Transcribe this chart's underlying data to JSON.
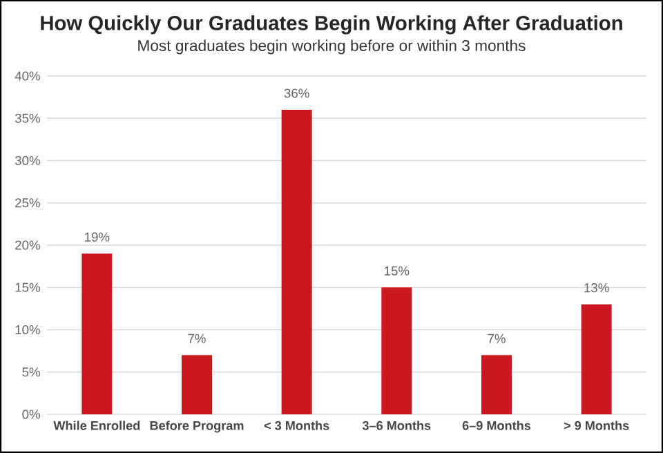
{
  "chart_data": {
    "type": "bar",
    "title": "How Quickly Our Graduates Begin Working After Graduation",
    "subtitle": "Most graduates begin working before or within 3 months",
    "categories": [
      "While Enrolled",
      "Before Program",
      "< 3 Months",
      "3–6 Months",
      "6–9 Months",
      "> 9 Months"
    ],
    "values": [
      19,
      7,
      36,
      15,
      7,
      13
    ],
    "value_labels": [
      "19%",
      "7%",
      "36%",
      "15%",
      "7%",
      "13%"
    ],
    "color": "#cc1820",
    "ylim": [
      0,
      40
    ],
    "yticks": [
      {
        "value": 0,
        "label": "0%"
      },
      {
        "value": 5,
        "label": "5%"
      },
      {
        "value": 10,
        "label": "10%"
      },
      {
        "value": 15,
        "label": "15%"
      },
      {
        "value": 20,
        "label": "20%"
      },
      {
        "value": 25,
        "label": "25%"
      },
      {
        "value": 30,
        "label": "30%"
      },
      {
        "value": 35,
        "label": "35%"
      },
      {
        "value": 40,
        "label": "40%"
      }
    ],
    "grid": "y"
  }
}
